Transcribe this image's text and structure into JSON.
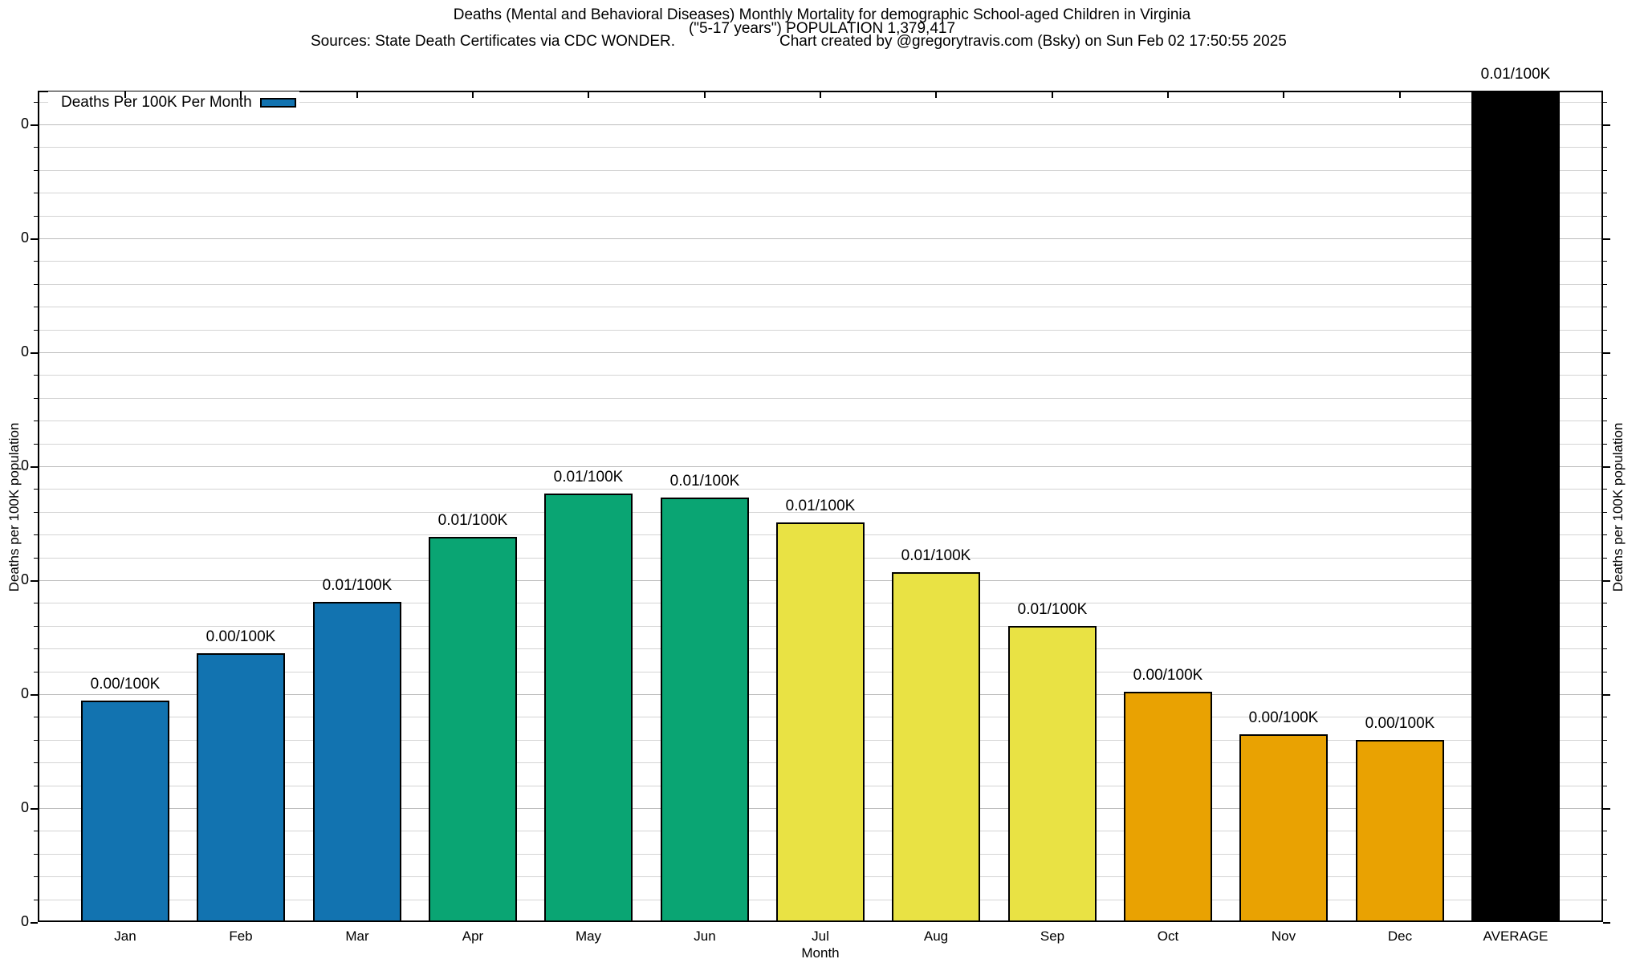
{
  "title": {
    "line1": "Deaths (Mental and Behavioral Diseases) Monthly Mortality for demographic School-aged Children in Virginia",
    "line2": "(\"5-17 years\") POPULATION 1,379,417",
    "sources_left": "Sources: State Death Certificates via CDC WONDER.",
    "sources_right": "Chart created by @gregorytravis.com (Bsky) on Sun Feb 02 17:50:55 2025"
  },
  "legend": {
    "label": "Deaths Per 100K Per Month",
    "swatch_color": "#1273b0"
  },
  "axes": {
    "xlabel": "Month",
    "ylabel_left": "Deaths per 100K population",
    "ylabel_right": "Deaths per 100K population",
    "ytick_label": "0",
    "ytick_label_count": 8
  },
  "chart_data": {
    "type": "bar",
    "title": "Deaths (Mental and Behavioral Diseases) Monthly Mortality, School-aged Children (5-17 years), Virginia",
    "xlabel": "Month",
    "ylabel": "Deaths per 100K population",
    "ylim": [
      0,
      0.0146
    ],
    "ytick_spacing": 0.002,
    "minor_ticks_per_major": 5,
    "grid": true,
    "legend_position": "top-left-inside",
    "categories": [
      "Jan",
      "Feb",
      "Mar",
      "Apr",
      "May",
      "Jun",
      "Jul",
      "Aug",
      "Sep",
      "Oct",
      "Nov",
      "Dec",
      "AVERAGE"
    ],
    "series": [
      {
        "month": "Jan",
        "value": 0.00389,
        "label": "0.00/100K",
        "color": "#1273b0",
        "clipped": false
      },
      {
        "month": "Feb",
        "value": 0.00472,
        "label": "0.00/100K",
        "color": "#1273b0",
        "clipped": false
      },
      {
        "month": "Mar",
        "value": 0.00562,
        "label": "0.01/100K",
        "color": "#1273b0",
        "clipped": false
      },
      {
        "month": "Apr",
        "value": 0.00676,
        "label": "0.01/100K",
        "color": "#0aa573",
        "clipped": false
      },
      {
        "month": "May",
        "value": 0.00752,
        "label": "0.01/100K",
        "color": "#0aa573",
        "clipped": false
      },
      {
        "month": "Jun",
        "value": 0.00745,
        "label": "0.01/100K",
        "color": "#0aa573",
        "clipped": false
      },
      {
        "month": "Jul",
        "value": 0.00701,
        "label": "0.01/100K",
        "color": "#e9e244",
        "clipped": false
      },
      {
        "month": "Aug",
        "value": 0.00614,
        "label": "0.01/100K",
        "color": "#e9e244",
        "clipped": false
      },
      {
        "month": "Sep",
        "value": 0.0052,
        "label": "0.01/100K",
        "color": "#e9e244",
        "clipped": false
      },
      {
        "month": "Oct",
        "value": 0.00404,
        "label": "0.00/100K",
        "color": "#e9a202",
        "clipped": false
      },
      {
        "month": "Nov",
        "value": 0.0033,
        "label": "0.00/100K",
        "color": "#e9a202",
        "clipped": false
      },
      {
        "month": "Dec",
        "value": 0.0032,
        "label": "0.00/100K",
        "color": "#e9a202",
        "clipped": false
      },
      {
        "month": "AVERAGE",
        "value": null,
        "label": "0.01/100K",
        "color": "#000000",
        "clipped": true
      }
    ]
  }
}
